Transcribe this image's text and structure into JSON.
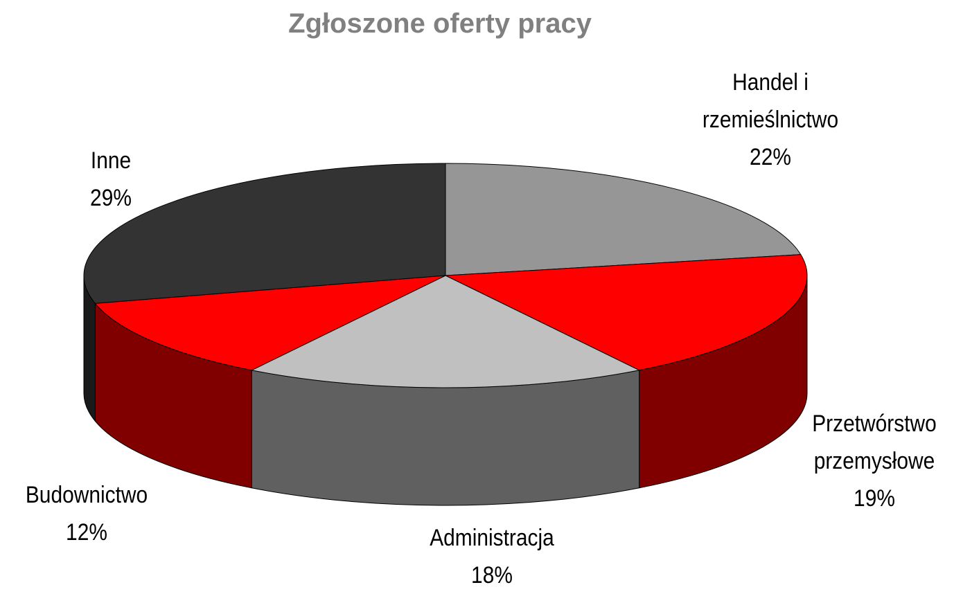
{
  "chart_data": {
    "type": "pie",
    "title": "Zgłoszone oferty pracy",
    "categories": [
      "Handel i rzemieślnictwo",
      "Przetwórstwo przemysłowe",
      "Administracja",
      "Budownictwo",
      "Inne"
    ],
    "values": [
      22,
      19,
      18,
      12,
      29
    ],
    "value_labels": [
      "22%",
      "19%",
      "18%",
      "12%",
      "29%"
    ],
    "colors": [
      "#969696",
      "#ff0000",
      "#c0c0c0",
      "#ff0000",
      "#333333"
    ]
  }
}
